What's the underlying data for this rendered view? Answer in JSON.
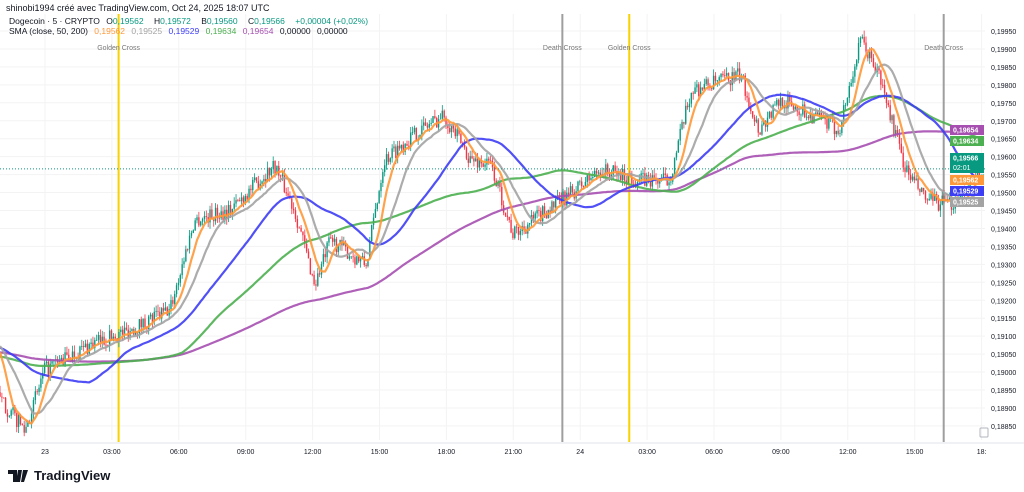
{
  "credit": "shinobi1994 créé avec TradingView.com, Oct 24, 2025 18:07 UTC",
  "legend": {
    "symbol": "Dogecoin · 5 · CRYPTO",
    "o_label": "O",
    "o": "0,19562",
    "h_label": "H",
    "h": "0,19572",
    "b_label": "B",
    "b": "0,19560",
    "c_label": "C",
    "c": "0,19566",
    "change": "+0,00004 (+0,02%)",
    "sma_label": "SMA (close, 50, 200)",
    "sma_values": [
      "0,19562",
      "0,19525",
      "0,19529",
      "0,19634",
      "0,19654",
      "0,00000",
      "0,00000"
    ]
  },
  "colors": {
    "up": "#089981",
    "down": "#f23645",
    "sma_fast": "#ff9838",
    "sma_gray": "#a3a3a3",
    "sma_50": "#3d3df5",
    "sma_100": "#4caf50",
    "sma_200": "#a64fb0",
    "golden": "#f7d200",
    "death": "#9e9e9e"
  },
  "logo": "TradingView",
  "chart_data": {
    "type": "candlestick",
    "ylim": [
      0.1882,
      0.1999
    ],
    "y_ticks": [
      "0,18850",
      "0,18900",
      "0,18950",
      "0,19000",
      "0,19050",
      "0,19100",
      "0,19150",
      "0,19200",
      "0,19250",
      "0,19300",
      "0,19350",
      "0,19400",
      "0,19450",
      "0,19500",
      "0,19550",
      "0,19600",
      "0,19650",
      "0,19700",
      "0,19750",
      "0,19800",
      "0,19850",
      "0,19900",
      "0,19950"
    ],
    "x_ticks": [
      {
        "h": 0,
        "label": "23"
      },
      {
        "h": 3,
        "label": "03:00"
      },
      {
        "h": 6,
        "label": "06:00"
      },
      {
        "h": 9,
        "label": "09:00"
      },
      {
        "h": 12,
        "label": "12:00"
      },
      {
        "h": 15,
        "label": "15:00"
      },
      {
        "h": 18,
        "label": "18:00"
      },
      {
        "h": 21,
        "label": "21:00"
      },
      {
        "h": 24,
        "label": "24"
      },
      {
        "h": 27,
        "label": "03:00"
      },
      {
        "h": 30,
        "label": "06:00"
      },
      {
        "h": 33,
        "label": "09:00"
      },
      {
        "h": 36,
        "label": "12:00"
      },
      {
        "h": 39,
        "label": "15:00"
      },
      {
        "h": 42,
        "label": "18:"
      }
    ],
    "events": [
      {
        "h": 3.3,
        "label": "Golden Cross",
        "kind": "golden"
      },
      {
        "h": 23.2,
        "label": "Death Cross",
        "kind": "death"
      },
      {
        "h": 26.2,
        "label": "Golden Cross",
        "kind": "golden"
      },
      {
        "h": 40.3,
        "label": "Death Cross",
        "kind": "death"
      }
    ],
    "price_path": [
      [
        -2,
        0.18922
      ],
      [
        -0.9,
        0.18839
      ],
      [
        0,
        0.19006
      ],
      [
        2,
        0.19075
      ],
      [
        3.8,
        0.19117
      ],
      [
        5.6,
        0.19173
      ],
      [
        6.7,
        0.19423
      ],
      [
        8.3,
        0.19451
      ],
      [
        10.3,
        0.19577
      ],
      [
        11.2,
        0.19451
      ],
      [
        12.1,
        0.19243
      ],
      [
        12.8,
        0.19368
      ],
      [
        14.4,
        0.19298
      ],
      [
        15.2,
        0.19591
      ],
      [
        16.8,
        0.19674
      ],
      [
        17.9,
        0.19716
      ],
      [
        19.1,
        0.19591
      ],
      [
        20,
        0.19577
      ],
      [
        21,
        0.19382
      ],
      [
        22.2,
        0.19437
      ],
      [
        23.5,
        0.19493
      ],
      [
        24.9,
        0.19563
      ],
      [
        26.7,
        0.19535
      ],
      [
        28,
        0.19535
      ],
      [
        29,
        0.19786
      ],
      [
        31.2,
        0.19827
      ],
      [
        32,
        0.19674
      ],
      [
        33,
        0.19758
      ],
      [
        34.8,
        0.19702
      ],
      [
        35.6,
        0.19674
      ],
      [
        36.6,
        0.19925
      ],
      [
        37.4,
        0.19827
      ],
      [
        38.6,
        0.19563
      ],
      [
        39.5,
        0.19479
      ],
      [
        40.6,
        0.19465
      ],
      [
        42.1,
        0.19566
      ]
    ],
    "last_price": {
      "value": "0,19566",
      "countdown": "02:01"
    },
    "sma_badges": [
      {
        "value": "0,19654",
        "key": "sma_200"
      },
      {
        "value": "0,19634",
        "key": "sma_100"
      },
      {
        "value": "0,19562",
        "key": "sma_fast"
      },
      {
        "value": "0,19529",
        "key": "sma_50"
      },
      {
        "value": "0,19525",
        "key": "sma_gray"
      }
    ]
  }
}
